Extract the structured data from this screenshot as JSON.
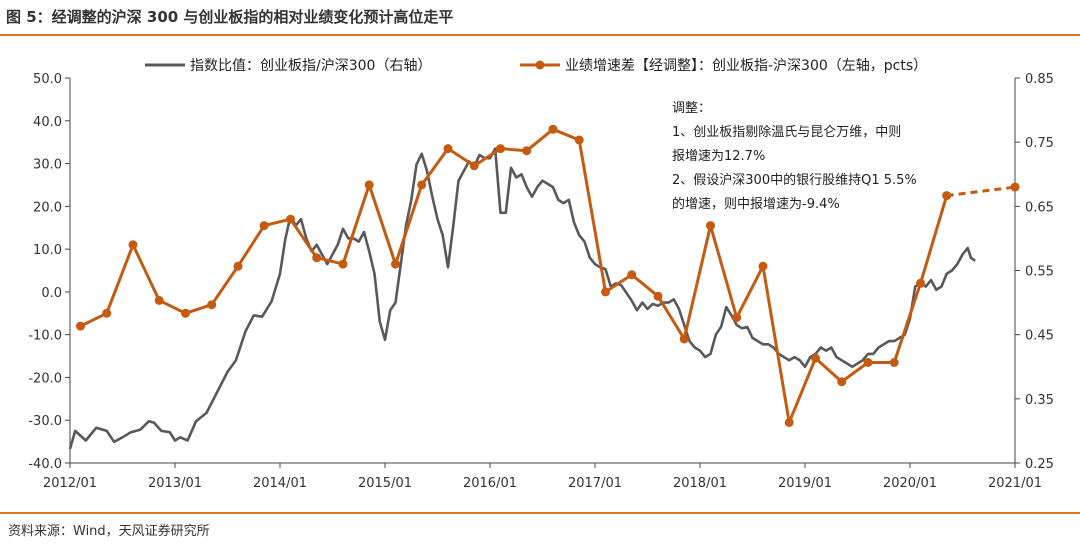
{
  "figure_title": "图 5：经调整的沪深 300 与创业板指的相对业绩变化预计高位走平",
  "source_note": "资料来源：Wind，天风证券研究所",
  "colors": {
    "index_ratio": "#595959",
    "growth_diff": "#c55a11",
    "rule": "#d9772b",
    "axis": "#444444"
  },
  "chart_data": {
    "type": "line",
    "legend": {
      "placement": "top"
    },
    "grid": false,
    "x_tick_labels": [
      "2012/01",
      "2013/01",
      "2014/01",
      "2015/01",
      "2016/01",
      "2017/01",
      "2018/01",
      "2019/01",
      "2020/01",
      "2021/01"
    ],
    "x_range": [
      2012.0,
      2021.0
    ],
    "y_left": {
      "range": [
        -40,
        50
      ],
      "tick_labels": [
        "50.0",
        "40.0",
        "30.0",
        "20.0",
        "10.0",
        "0.0",
        "-10.0",
        "-20.0",
        "-30.0",
        "-40.0"
      ],
      "tick_values": [
        50,
        40,
        30,
        20,
        10,
        0,
        -10,
        -20,
        -30,
        -40
      ]
    },
    "y_right": {
      "range": [
        0.25,
        0.85
      ],
      "tick_labels": [
        "0.85",
        "0.75",
        "0.65",
        "0.55",
        "0.45",
        "0.35",
        "0.25"
      ],
      "tick_values": [
        0.85,
        0.75,
        0.65,
        0.55,
        0.45,
        0.35,
        0.25
      ]
    },
    "series": [
      {
        "name": "指数比值：创业板指/沪深300（右轴）",
        "axis": "right",
        "color": "#595959",
        "points": [
          [
            2012.0,
            0.272
          ],
          [
            2012.05,
            0.3
          ],
          [
            2012.15,
            0.285
          ],
          [
            2012.25,
            0.305
          ],
          [
            2012.35,
            0.3
          ],
          [
            2012.42,
            0.283
          ],
          [
            2012.5,
            0.29
          ],
          [
            2012.58,
            0.298
          ],
          [
            2012.67,
            0.302
          ],
          [
            2012.75,
            0.315
          ],
          [
            2012.8,
            0.313
          ],
          [
            2012.87,
            0.3
          ],
          [
            2012.95,
            0.298
          ],
          [
            2013.0,
            0.285
          ],
          [
            2013.05,
            0.29
          ],
          [
            2013.12,
            0.285
          ],
          [
            2013.2,
            0.315
          ],
          [
            2013.3,
            0.328
          ],
          [
            2013.4,
            0.36
          ],
          [
            2013.5,
            0.392
          ],
          [
            2013.58,
            0.41
          ],
          [
            2013.67,
            0.455
          ],
          [
            2013.75,
            0.48
          ],
          [
            2013.83,
            0.478
          ],
          [
            2013.92,
            0.502
          ],
          [
            2014.0,
            0.545
          ],
          [
            2014.05,
            0.598
          ],
          [
            2014.1,
            0.635
          ],
          [
            2014.15,
            0.62
          ],
          [
            2014.2,
            0.63
          ],
          [
            2014.25,
            0.6
          ],
          [
            2014.3,
            0.58
          ],
          [
            2014.35,
            0.59
          ],
          [
            2014.4,
            0.575
          ],
          [
            2014.45,
            0.56
          ],
          [
            2014.5,
            0.575
          ],
          [
            2014.55,
            0.59
          ],
          [
            2014.6,
            0.615
          ],
          [
            2014.65,
            0.6
          ],
          [
            2014.7,
            0.6
          ],
          [
            2014.75,
            0.595
          ],
          [
            2014.8,
            0.61
          ],
          [
            2014.85,
            0.58
          ],
          [
            2014.9,
            0.545
          ],
          [
            2014.95,
            0.47
          ],
          [
            2015.0,
            0.442
          ],
          [
            2015.05,
            0.488
          ],
          [
            2015.1,
            0.5
          ],
          [
            2015.15,
            0.56
          ],
          [
            2015.2,
            0.62
          ],
          [
            2015.25,
            0.66
          ],
          [
            2015.3,
            0.715
          ],
          [
            2015.35,
            0.732
          ],
          [
            2015.4,
            0.705
          ],
          [
            2015.45,
            0.665
          ],
          [
            2015.5,
            0.63
          ],
          [
            2015.55,
            0.605
          ],
          [
            2015.6,
            0.555
          ],
          [
            2015.65,
            0.62
          ],
          [
            2015.7,
            0.69
          ],
          [
            2015.75,
            0.705
          ],
          [
            2015.8,
            0.72
          ],
          [
            2015.85,
            0.712
          ],
          [
            2015.9,
            0.73
          ],
          [
            2015.95,
            0.725
          ],
          [
            2016.0,
            0.725
          ],
          [
            2016.05,
            0.74
          ],
          [
            2016.1,
            0.64
          ],
          [
            2016.15,
            0.64
          ],
          [
            2016.2,
            0.71
          ],
          [
            2016.25,
            0.695
          ],
          [
            2016.3,
            0.7
          ],
          [
            2016.35,
            0.68
          ],
          [
            2016.4,
            0.665
          ],
          [
            2016.45,
            0.68
          ],
          [
            2016.5,
            0.69
          ],
          [
            2016.55,
            0.685
          ],
          [
            2016.6,
            0.68
          ],
          [
            2016.65,
            0.66
          ],
          [
            2016.7,
            0.655
          ],
          [
            2016.75,
            0.66
          ],
          [
            2016.8,
            0.625
          ],
          [
            2016.85,
            0.605
          ],
          [
            2016.9,
            0.595
          ],
          [
            2016.95,
            0.57
          ],
          [
            2017.0,
            0.56
          ],
          [
            2017.05,
            0.555
          ],
          [
            2017.1,
            0.552
          ],
          [
            2017.15,
            0.525
          ],
          [
            2017.2,
            0.53
          ],
          [
            2017.25,
            0.527
          ],
          [
            2017.3,
            0.515
          ],
          [
            2017.35,
            0.503
          ],
          [
            2017.4,
            0.488
          ],
          [
            2017.45,
            0.5
          ],
          [
            2017.5,
            0.49
          ],
          [
            2017.55,
            0.498
          ],
          [
            2017.6,
            0.495
          ],
          [
            2017.65,
            0.5
          ],
          [
            2017.7,
            0.5
          ],
          [
            2017.75,
            0.505
          ],
          [
            2017.8,
            0.49
          ],
          [
            2017.85,
            0.465
          ],
          [
            2017.9,
            0.44
          ],
          [
            2017.95,
            0.43
          ],
          [
            2018.0,
            0.425
          ],
          [
            2018.05,
            0.415
          ],
          [
            2018.1,
            0.42
          ],
          [
            2018.15,
            0.45
          ],
          [
            2018.2,
            0.462
          ],
          [
            2018.25,
            0.493
          ],
          [
            2018.3,
            0.48
          ],
          [
            2018.35,
            0.465
          ],
          [
            2018.4,
            0.46
          ],
          [
            2018.45,
            0.462
          ],
          [
            2018.5,
            0.445
          ],
          [
            2018.55,
            0.44
          ],
          [
            2018.6,
            0.435
          ],
          [
            2018.65,
            0.435
          ],
          [
            2018.7,
            0.43
          ],
          [
            2018.75,
            0.42
          ],
          [
            2018.8,
            0.415
          ],
          [
            2018.85,
            0.41
          ],
          [
            2018.9,
            0.415
          ],
          [
            2018.95,
            0.41
          ],
          [
            2019.0,
            0.4
          ],
          [
            2019.05,
            0.415
          ],
          [
            2019.1,
            0.42
          ],
          [
            2019.15,
            0.43
          ],
          [
            2019.2,
            0.425
          ],
          [
            2019.25,
            0.43
          ],
          [
            2019.3,
            0.415
          ],
          [
            2019.35,
            0.41
          ],
          [
            2019.4,
            0.405
          ],
          [
            2019.45,
            0.4
          ],
          [
            2019.5,
            0.405
          ],
          [
            2019.55,
            0.41
          ],
          [
            2019.6,
            0.42
          ],
          [
            2019.65,
            0.42
          ],
          [
            2019.7,
            0.43
          ],
          [
            2019.75,
            0.435
          ],
          [
            2019.8,
            0.44
          ],
          [
            2019.85,
            0.44
          ],
          [
            2019.95,
            0.45
          ],
          [
            2020.0,
            0.475
          ],
          [
            2020.05,
            0.525
          ],
          [
            2020.1,
            0.53
          ],
          [
            2020.15,
            0.525
          ],
          [
            2020.2,
            0.535
          ],
          [
            2020.25,
            0.52
          ],
          [
            2020.3,
            0.525
          ],
          [
            2020.35,
            0.545
          ],
          [
            2020.4,
            0.55
          ],
          [
            2020.45,
            0.56
          ],
          [
            2020.5,
            0.575
          ],
          [
            2020.55,
            0.585
          ],
          [
            2020.58,
            0.57
          ],
          [
            2020.62,
            0.565
          ]
        ]
      },
      {
        "name": "业绩增速差【经调整】：创业板指-沪深300（左轴，pcts）",
        "axis": "left",
        "color": "#c55a11",
        "points": [
          [
            2012.1,
            -8.0
          ],
          [
            2012.35,
            -5.0
          ],
          [
            2012.6,
            11.0
          ],
          [
            2012.85,
            -2.0
          ],
          [
            2013.1,
            -5.0
          ],
          [
            2013.35,
            -3.0
          ],
          [
            2013.6,
            6.0
          ],
          [
            2013.85,
            15.5
          ],
          [
            2014.1,
            17.0
          ],
          [
            2014.35,
            8.0
          ],
          [
            2014.6,
            6.5
          ],
          [
            2014.85,
            25.0
          ],
          [
            2015.1,
            6.5
          ],
          [
            2015.35,
            25.0
          ],
          [
            2015.6,
            33.5
          ],
          [
            2015.85,
            29.5
          ],
          [
            2016.1,
            33.5
          ],
          [
            2016.35,
            33.0
          ],
          [
            2016.6,
            38.0
          ],
          [
            2016.85,
            35.5
          ],
          [
            2017.1,
            0.0
          ],
          [
            2017.35,
            4.0
          ],
          [
            2017.6,
            -1.0
          ],
          [
            2017.85,
            -11.0
          ],
          [
            2018.1,
            15.5
          ],
          [
            2018.35,
            -6.0
          ],
          [
            2018.6,
            6.0
          ],
          [
            2018.85,
            -30.5
          ],
          [
            2019.1,
            -15.5
          ],
          [
            2019.35,
            -21.0
          ],
          [
            2019.6,
            -16.5
          ],
          [
            2019.85,
            -16.5
          ],
          [
            2020.1,
            2.0
          ],
          [
            2020.35,
            22.5
          ]
        ],
        "projection": [
          [
            2020.35,
            22.5
          ],
          [
            2021.0,
            24.5
          ]
        ]
      }
    ],
    "annotation": [
      "调整：",
      "1、创业板指剔除温氏与昆仑万维，中则",
      "报增速为12.7%",
      "2、假设沪深300中的银行股维持Q1 5.5%",
      "的增速，则中报增速为-9.4%"
    ]
  }
}
